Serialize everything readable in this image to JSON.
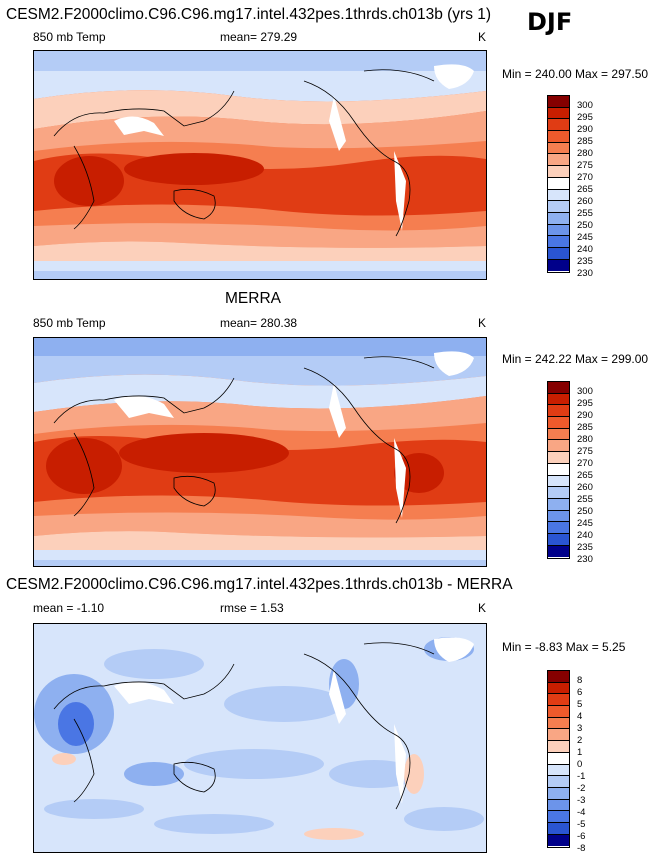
{
  "season": "DJF",
  "panels": [
    {
      "title": "CESM2.F2000climo.C96.C96.mg17.intel.432pes.1thrds.ch013b (yrs 1)",
      "field": "850 mb Temp",
      "mean_label": "mean= 279.29",
      "units": "K",
      "minmax": "Min = 240.00 Max = 297.50",
      "colorbar": [
        "300",
        "295",
        "290",
        "285",
        "280",
        "275",
        "270",
        "265",
        "260",
        "255",
        "250",
        "245",
        "240",
        "235",
        "230"
      ]
    },
    {
      "title": "MERRA",
      "field": "850 mb Temp",
      "mean_label": "mean= 280.38",
      "units": "K",
      "minmax": "Min = 242.22 Max = 299.00",
      "colorbar": [
        "300",
        "295",
        "290",
        "285",
        "280",
        "275",
        "270",
        "265",
        "260",
        "255",
        "250",
        "245",
        "240",
        "235",
        "230"
      ]
    },
    {
      "title": "CESM2.F2000climo.C96.C96.mg17.intel.432pes.1thrds.ch013b - MERRA",
      "field": "mean =  -1.10",
      "mean_label": "rmse =   1.53",
      "units": "K",
      "minmax": "Min =  -8.83 Max =   5.25",
      "colorbar": [
        "8",
        "6",
        "5",
        "4",
        "3",
        "2",
        "1",
        "0",
        "-1",
        "-2",
        "-3",
        "-4",
        "-5",
        "-6",
        "-8"
      ]
    }
  ],
  "colors": {
    "abs_palette": [
      "#850000",
      "#c81e00",
      "#e03c14",
      "#ee5a2c",
      "#f57e50",
      "#f9a684",
      "#fcd0bb",
      "#ffffff",
      "#d7e5fb",
      "#b4ccf6",
      "#8eb0f0",
      "#6c94ea",
      "#4a76e4",
      "#2a55d2",
      "#0e2ab4",
      "#00008a"
    ],
    "diff_palette": [
      "#850000",
      "#c81e00",
      "#e03c14",
      "#ee5a2c",
      "#f57e50",
      "#f9a684",
      "#fcd0bb",
      "#ffffff",
      "#d7e5fb",
      "#b4ccf6",
      "#8eb0f0",
      "#6c94ea",
      "#4a76e4",
      "#2a55d2",
      "#0e2ab4",
      "#00008a"
    ]
  }
}
